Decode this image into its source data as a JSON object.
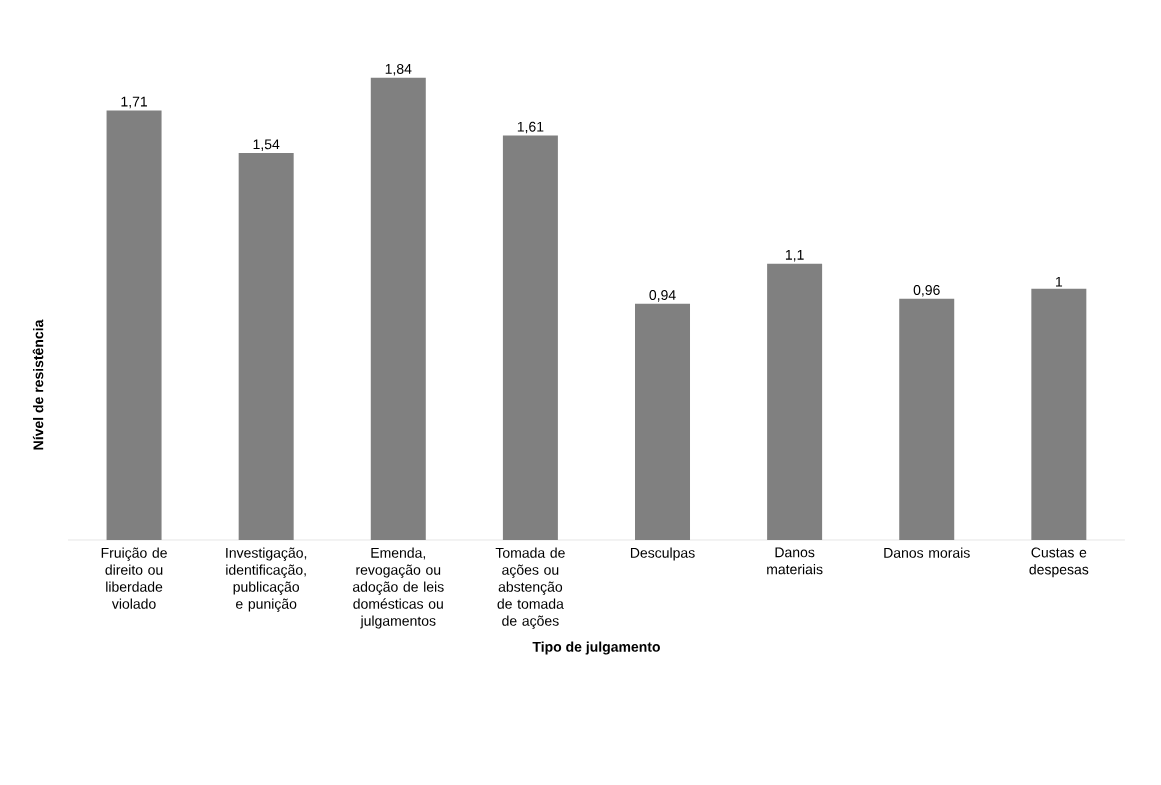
{
  "chart_data": {
    "type": "bar",
    "xlabel": "Tipo de julgamento",
    "ylabel": "Nível de resistência",
    "categories": [
      "Fruição de direito ou liberdade violado",
      "Investigação, identificação, publicação e punição",
      "Emenda, revogação ou adoção de leis domésticas ou julgamentos",
      "Tomada de ações ou abstenção de tomada de ações",
      "Desculpas",
      "Danos materiais",
      "Danos morais",
      "Custas e despesas"
    ],
    "values": [
      1.71,
      1.54,
      1.84,
      1.61,
      0.94,
      1.1,
      0.96,
      1
    ],
    "value_labels": [
      "1,71",
      "1,54",
      "1,84",
      "1,61",
      "0,94",
      "1,1",
      "0,96",
      "1"
    ],
    "color": "#808080",
    "grid": false
  }
}
